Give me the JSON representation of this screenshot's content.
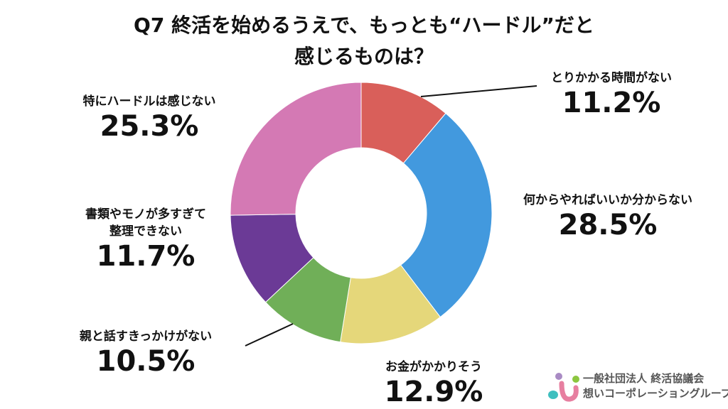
{
  "chart_data": {
    "type": "pie",
    "style": "donut",
    "title": [
      "Q7 終活を始めるうえで、もっとも“ハードル”だと",
      "感じるものは？"
    ],
    "categories": [
      "とりかかる時間がない",
      "何からやればいいか分からない",
      "お金がかかりそう",
      "親と話すきっかけがない",
      "書類やモノが多すぎて整理できない",
      "特にハードルは感じない"
    ],
    "label_lines": [
      [
        "とりかかる時間がない"
      ],
      [
        "何からやればいいか分からない"
      ],
      [
        "お金がかかりそう"
      ],
      [
        "親と話すきっかけがない"
      ],
      [
        "書類やモノが多すぎて",
        "整理できない"
      ],
      [
        "特にハードルは感じない"
      ]
    ],
    "values": [
      11.2,
      28.5,
      12.9,
      10.5,
      11.7,
      25.3
    ],
    "value_labels": [
      "11.2%",
      "28.5%",
      "12.9%",
      "10.5%",
      "11.7%",
      "25.3%"
    ],
    "colors": [
      "#D95F5A",
      "#4299DE",
      "#E5D77A",
      "#70AF58",
      "#6B3A96",
      "#D479B4"
    ],
    "unit": "%",
    "legend": "none"
  },
  "logo": {
    "line1": "一般社団法人 終活協議会",
    "line2": "想いコーポレーショングループ"
  }
}
